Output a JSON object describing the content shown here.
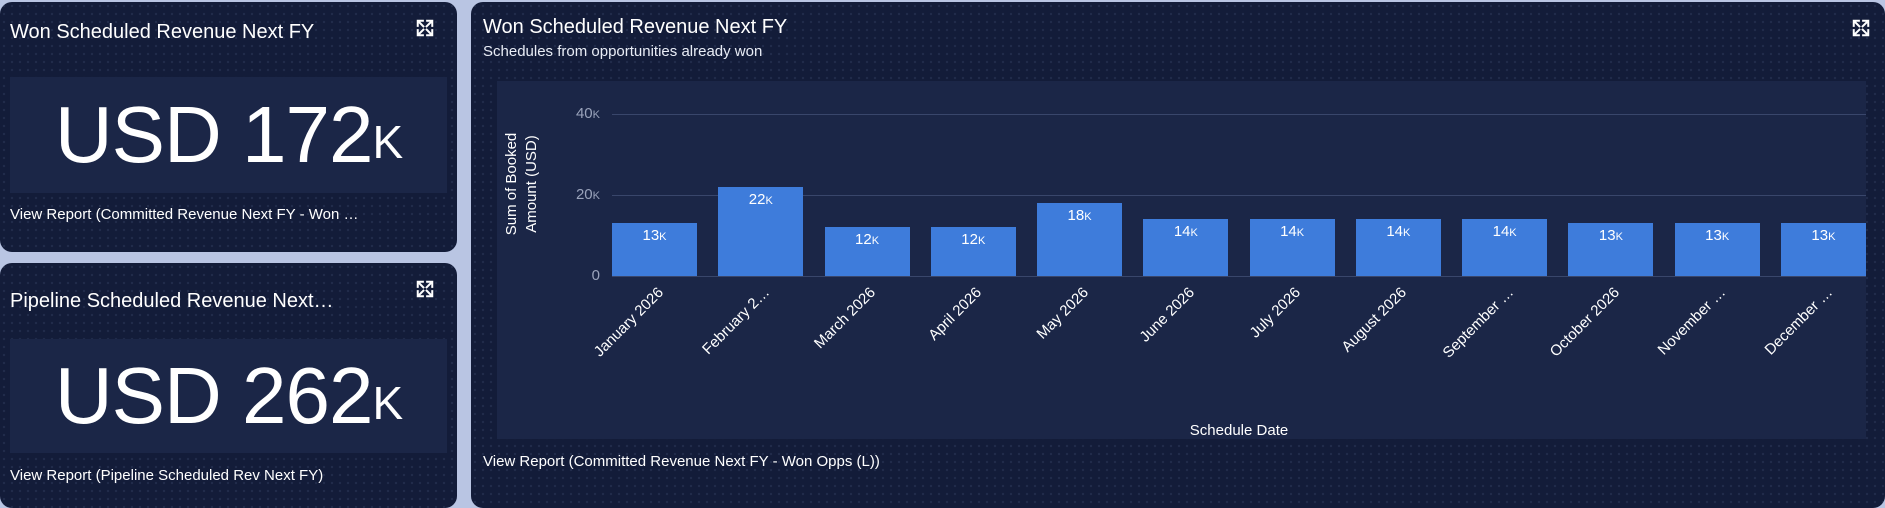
{
  "colors": {
    "page_bg": "#b9c5e3",
    "card_bg": "#131c39",
    "inset_bg": "#1b2647",
    "bar": "#3e7cdb",
    "grid": "#39466b",
    "tick_text": "#9aa3bb",
    "text": "#ffffff"
  },
  "kpi_cards": [
    {
      "title": "Won Scheduled Revenue Next FY",
      "metric_prefix": "USD 172",
      "metric_suffix": "k",
      "footer_link": "View Report (Committed Revenue Next FY - Won …"
    },
    {
      "title": "Pipeline Scheduled Revenue Next…",
      "metric_prefix": "USD 262",
      "metric_suffix": "k",
      "footer_link": "View Report (Pipeline Scheduled Rev Next FY)"
    }
  ],
  "chart_panel": {
    "title": "Won Scheduled Revenue Next FY",
    "subtitle": "Schedules from opportunities already won",
    "footer_link": "View Report (Committed Revenue Next FY - Won Opps (L))"
  },
  "chart_data": {
    "type": "bar",
    "title": "Won Scheduled Revenue Next FY",
    "xlabel": "Schedule Date",
    "ylabel": "Sum of Booked Amount (USD)",
    "ylabel_lines": [
      "Sum of Booked",
      "Amount (USD)"
    ],
    "ylim": [
      0,
      40000
    ],
    "yticks": [
      {
        "value": 40000,
        "label": "40k"
      },
      {
        "value": 20000,
        "label": "20k"
      },
      {
        "value": 0,
        "label": "0"
      }
    ],
    "unit_suffix": "k",
    "grid": true,
    "legend": false,
    "categories": [
      "January 2026",
      "February 2026",
      "March 2026",
      "April 2026",
      "May 2026",
      "June 2026",
      "July 2026",
      "August 2026",
      "September 2026",
      "October 2026",
      "November 2026",
      "December 2026"
    ],
    "category_labels": [
      "January 2026",
      "February 2…",
      "March 2026",
      "April 2026",
      "May 2026",
      "June 2026",
      "July 2026",
      "August 2026",
      "September …",
      "October 2026",
      "November …",
      "December …"
    ],
    "values": [
      13000,
      22000,
      12000,
      12000,
      18000,
      14000,
      14000,
      14000,
      14000,
      13000,
      13000,
      13000
    ],
    "bar_labels": [
      "13k",
      "22k",
      "12k",
      "12k",
      "18k",
      "14k",
      "14k",
      "14k",
      "14k",
      "13k",
      "13k",
      "13k"
    ]
  },
  "icons": {
    "expand": "expand-icon"
  }
}
